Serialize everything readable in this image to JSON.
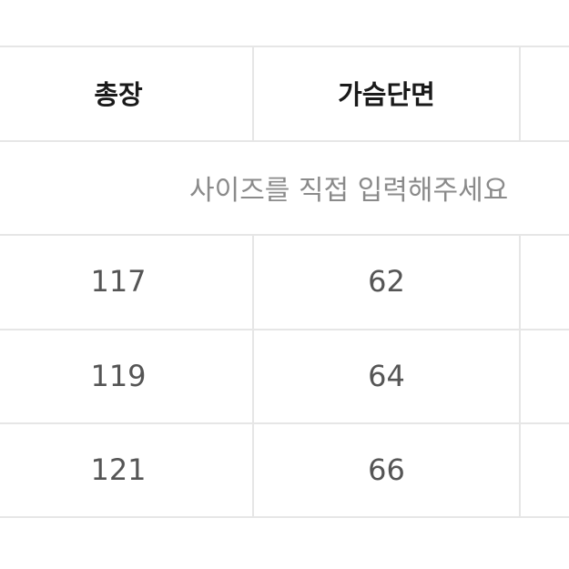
{
  "table": {
    "headers": [
      "총장",
      "가슴단면"
    ],
    "note": "사이즈를 직접 입력해주세요",
    "rows": [
      [
        "117",
        "62"
      ],
      [
        "119",
        "64"
      ],
      [
        "121",
        "66"
      ]
    ]
  }
}
